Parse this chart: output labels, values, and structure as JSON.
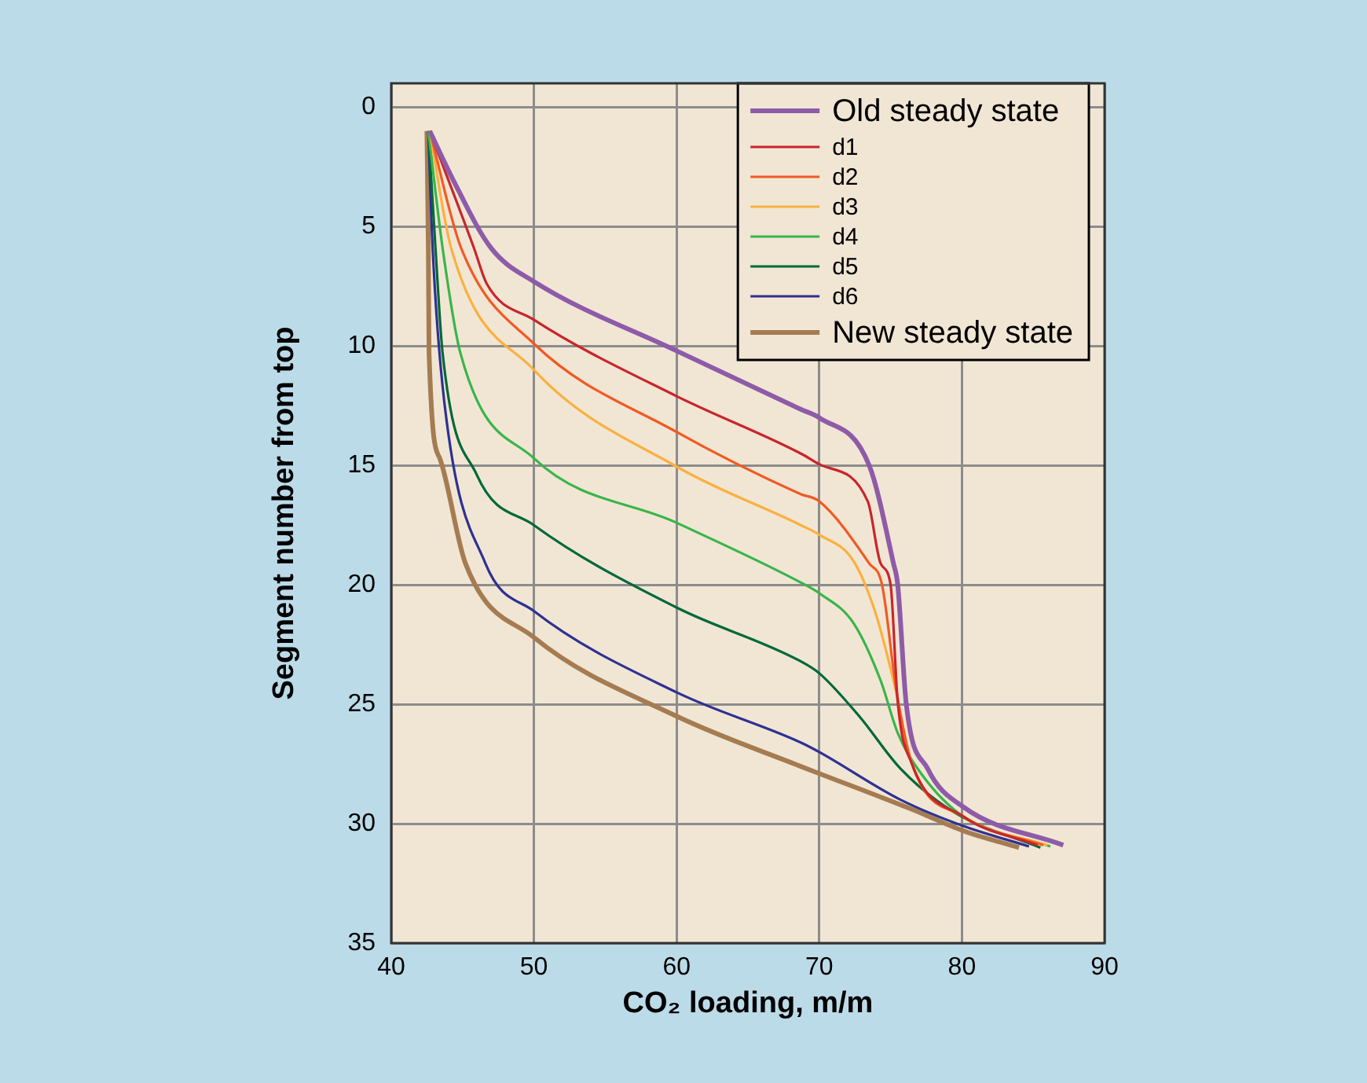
{
  "chart_data": {
    "type": "line",
    "xlabel": "CO₂ loading, m/m",
    "ylabel": "Segment number from top",
    "xlim": [
      40,
      90
    ],
    "xticks": [
      40,
      50,
      60,
      70,
      80,
      90
    ],
    "ylim": [
      35,
      -1
    ],
    "yticks": [
      0,
      5,
      10,
      15,
      20,
      25,
      30,
      35
    ],
    "grid": true,
    "legend": "top right",
    "series": [
      {
        "name": "Old steady state",
        "color": "#8e5ba8",
        "x": [
          42.7,
          44.3,
          47.0,
          50,
          60,
          68.7,
          70,
          73.5,
          75.2,
          75.5,
          76.1,
          77.6,
          80.1,
          87.1
        ],
        "values": [
          1,
          3,
          5.9,
          7.3,
          10.2,
          12.65,
          13.0,
          15,
          19.1,
          20,
          25,
          27.7,
          29.3,
          30.9
        ]
      },
      {
        "name": "d1",
        "color": "#c8262c",
        "x": [
          42.7,
          45.8,
          46.7,
          50,
          60,
          68.7,
          70,
          73.4,
          74.3,
          75.0,
          75.5,
          76.5,
          80.1,
          85.3
        ],
        "values": [
          1,
          5.9,
          7.4,
          8.9,
          12.1,
          14.5,
          14.95,
          16.5,
          19.1,
          20,
          24.9,
          27.5,
          29.7,
          30.9
        ]
      },
      {
        "name": "d2",
        "color": "#f15a24",
        "x": [
          42.7,
          44.9,
          50,
          60,
          68.7,
          70,
          73.5,
          74.4,
          75.4,
          76.5,
          80.1,
          85.7
        ],
        "values": [
          1,
          5.9,
          9.9,
          13.6,
          16.2,
          16.5,
          19.1,
          20,
          24.4,
          27.5,
          29.7,
          30.9
        ]
      },
      {
        "name": "d3",
        "color": "#fbb040",
        "x": [
          42.7,
          44.2,
          50,
          60,
          68.7,
          70,
          72.4,
          73.9,
          75.2,
          76.5,
          80.1,
          86.0
        ],
        "values": [
          1,
          5.9,
          11.0,
          15.05,
          17.5,
          17.9,
          19.0,
          21.1,
          24.0,
          27.5,
          29.7,
          30.9
        ]
      },
      {
        "name": "d4",
        "color": "#39b54a",
        "x": [
          42.6,
          43.6,
          44.85,
          50,
          60,
          68.7,
          70,
          72.4,
          74.3,
          75.5,
          77.2,
          80.1,
          86.2
        ],
        "values": [
          1,
          5.9,
          10.3,
          14.7,
          17.4,
          19.9,
          20.35,
          21.6,
          24.0,
          26.2,
          27.95,
          29.7,
          30.95
        ]
      },
      {
        "name": "d5",
        "color": "#006838",
        "x": [
          42.6,
          43.1,
          43.6,
          46.0,
          50,
          60,
          68.7,
          70,
          72.8,
          75.7,
          79.4,
          85.5
        ],
        "values": [
          1,
          5.9,
          10.3,
          15.4,
          17.5,
          20.95,
          23.2,
          23.7,
          25.5,
          27.7,
          29.5,
          31.0
        ]
      },
      {
        "name": "d6",
        "color": "#2e3192",
        "x": [
          42.6,
          42.9,
          43.75,
          46.6,
          50,
          60,
          68.7,
          70,
          75.7,
          80.1,
          84.7
        ],
        "values": [
          1,
          5.9,
          12.5,
          19.1,
          21.1,
          24.5,
          26.6,
          27.0,
          29.0,
          30.1,
          30.95
        ]
      },
      {
        "name": "New steady state",
        "color": "#a57c52",
        "x": [
          42.5,
          42.6,
          42.65,
          43.4,
          45.2,
          50,
          60,
          68.7,
          70,
          76.5,
          80.1,
          84.0
        ],
        "values": [
          1,
          5.9,
          10.3,
          14.7,
          19.1,
          22.2,
          25.5,
          27.6,
          27.9,
          29.4,
          30.3,
          31.0
        ]
      }
    ]
  }
}
